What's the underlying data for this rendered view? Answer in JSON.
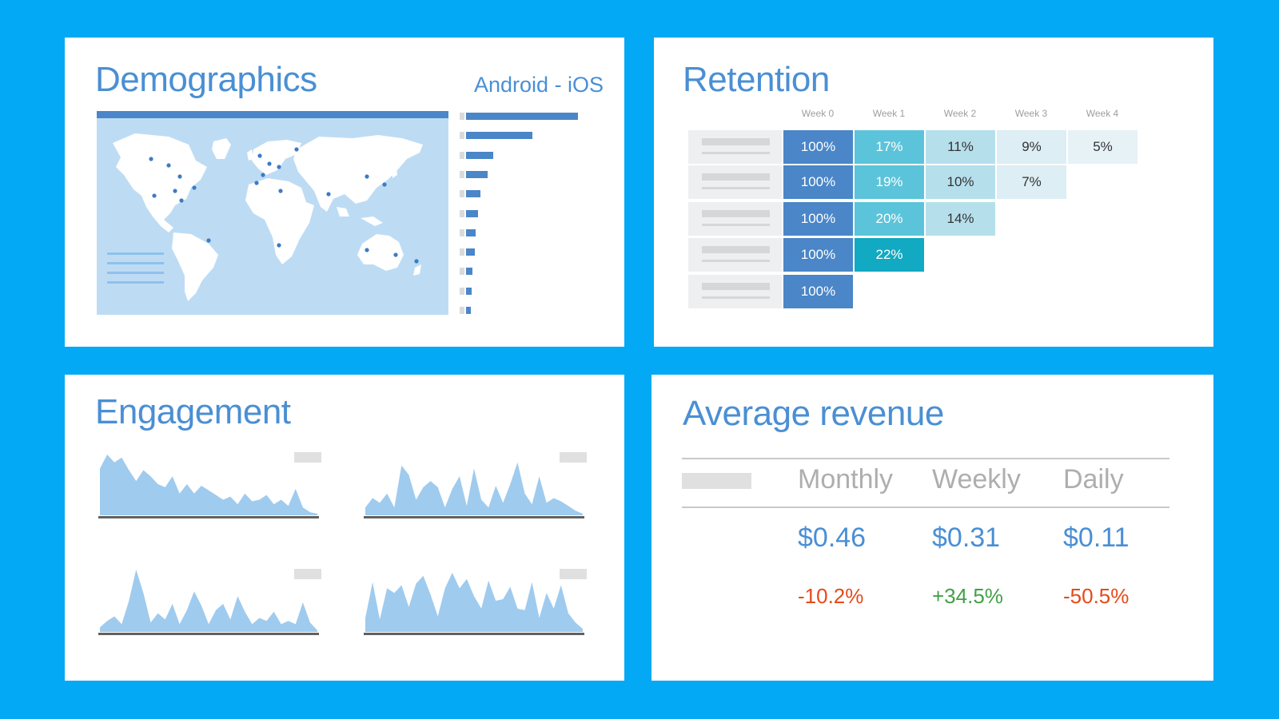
{
  "demographics": {
    "title": "Demographics",
    "subtitle": "Android - iOS",
    "bar_values": [
      1.0,
      0.59,
      0.24,
      0.19,
      0.13,
      0.11,
      0.085,
      0.075,
      0.055,
      0.047,
      0.04
    ],
    "colors": {
      "bar": "#4A86C8",
      "track": "#DADADA",
      "map": "#BDDCF4",
      "land": "#FFFFFF",
      "dot": "#3C7CC2"
    }
  },
  "retention": {
    "title": "Retention",
    "weeks": [
      "Week 0",
      "Week 1",
      "Week 2",
      "Week 3",
      "Week 4"
    ],
    "rows": [
      [
        "100%",
        "17%",
        "11%",
        "9%",
        "5%"
      ],
      [
        "100%",
        "19%",
        "10%",
        "7%"
      ],
      [
        "100%",
        "20%",
        "14%"
      ],
      [
        "100%",
        "22%"
      ],
      [
        "100%"
      ]
    ]
  },
  "engagement": {
    "title": "Engagement",
    "series": [
      [
        60,
        78,
        68,
        74,
        58,
        44,
        58,
        50,
        40,
        36,
        50,
        28,
        40,
        28,
        38,
        32,
        26,
        20,
        24,
        14,
        28,
        18,
        20,
        26,
        14,
        20,
        12,
        34,
        10,
        4,
        2
      ],
      [
        10,
        22,
        16,
        28,
        10,
        64,
        52,
        20,
        36,
        44,
        36,
        10,
        34,
        50,
        12,
        60,
        20,
        10,
        38,
        16,
        40,
        68,
        28,
        14,
        50,
        16,
        22,
        18,
        12,
        6,
        2
      ],
      [
        6,
        14,
        20,
        10,
        40,
        80,
        50,
        12,
        24,
        16,
        36,
        10,
        28,
        52,
        34,
        10,
        28,
        36,
        16,
        46,
        26,
        10,
        18,
        14,
        26,
        10,
        14,
        10,
        38,
        12,
        2
      ],
      [
        18,
        64,
        16,
        56,
        50,
        60,
        32,
        62,
        72,
        48,
        20,
        56,
        76,
        56,
        68,
        46,
        30,
        66,
        40,
        42,
        58,
        30,
        28,
        64,
        18,
        50,
        30,
        60,
        24,
        12,
        4
      ]
    ],
    "colors": {
      "fill": "#9FCBEE",
      "baseline": "#616161",
      "tag": "#E0E0E0"
    }
  },
  "revenue": {
    "title": "Average revenue",
    "columns": [
      {
        "label": "Monthly",
        "value": "$0.46",
        "change": "-10.2%",
        "change_color": "#E64A19"
      },
      {
        "label": "Weekly",
        "value": "$0.31",
        "change": "+34.5%",
        "change_color": "#43A047"
      },
      {
        "label": "Daily",
        "value": "$0.11",
        "change": "-50.5%",
        "change_color": "#E64A19"
      }
    ]
  },
  "colors": {
    "background": "#03A9F4",
    "title": "#4A8FD4",
    "card": "#FFFFFF"
  }
}
